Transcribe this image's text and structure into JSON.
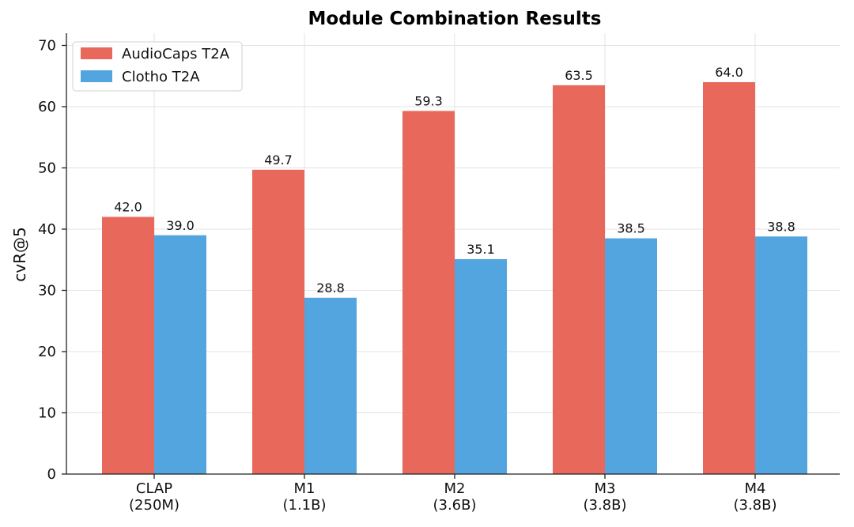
{
  "chart_data": {
    "type": "bar",
    "title": "Module Combination Results",
    "xlabel": "",
    "ylabel": "cvR@5",
    "ylim": [
      0,
      72
    ],
    "yticks": [
      0,
      10,
      20,
      30,
      40,
      50,
      60,
      70
    ],
    "grid": true,
    "legend_position": "top-left",
    "categories": [
      [
        "CLAP",
        "(250M)"
      ],
      [
        "M1",
        "(1.1B)"
      ],
      [
        "M2",
        "(3.6B)"
      ],
      [
        "M3",
        "(3.8B)"
      ],
      [
        "M4",
        "(3.8B)"
      ]
    ],
    "series": [
      {
        "name": "AudioCaps T2A",
        "color": "#E8695B",
        "values": [
          42.0,
          49.7,
          59.3,
          63.5,
          64.0
        ],
        "labels": [
          "42.0",
          "49.7",
          "59.3",
          "63.5",
          "64.0"
        ]
      },
      {
        "name": "Clotho T2A",
        "color": "#52A5DF",
        "values": [
          39.0,
          28.8,
          35.1,
          38.5,
          38.8
        ],
        "labels": [
          "39.0",
          "28.8",
          "35.1",
          "38.5",
          "38.8"
        ]
      }
    ]
  }
}
